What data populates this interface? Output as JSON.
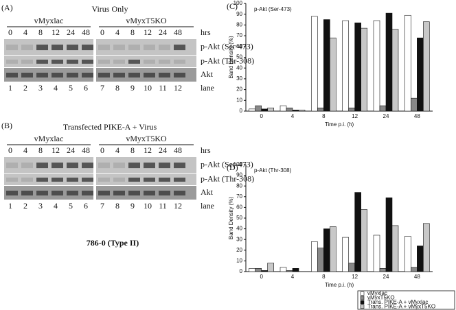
{
  "panels": [
    {
      "label": "(A)",
      "title": "Virus Only",
      "groups": [
        "vMyxlac",
        "vMyxT5KO"
      ],
      "times": [
        "0",
        "4",
        "8",
        "12",
        "24",
        "48"
      ],
      "time_unit": "hrs",
      "bands": [
        "p-Akt (Ser-473)",
        "p-Akt (Thr-308)",
        "Akt"
      ],
      "lanes": [
        1,
        2,
        3,
        4,
        5,
        6,
        7,
        8,
        9,
        10,
        11,
        12
      ],
      "lane_label": "lane"
    },
    {
      "label": "(B)",
      "title": "Transfected PIKE-A + Virus",
      "groups": [
        "vMyxlac",
        "vMyxT5KO"
      ],
      "times": [
        "0",
        "4",
        "8",
        "12",
        "24",
        "48"
      ],
      "time_unit": "hrs",
      "bands": [
        "p-Akt (Ser-473)",
        "p-Akt (Thr-308)",
        "Akt"
      ],
      "lanes": [
        1,
        2,
        3,
        4,
        5,
        6,
        7,
        8,
        9,
        10,
        11,
        12
      ],
      "lane_label": "lane"
    }
  ],
  "cell_line": "786-0 (Type II)",
  "chart_data": [
    {
      "type": "bar",
      "label": "(C)",
      "title": "p-Akt (Ser-473)",
      "ylabel": "Band Density (%)",
      "xlabel": "Time p.i. (h)",
      "categories": [
        "0",
        "4",
        "8",
        "12",
        "24",
        "48"
      ],
      "ylim": [
        0,
        100
      ],
      "yticks": [
        0,
        10,
        20,
        30,
        40,
        50,
        60,
        70,
        80,
        90,
        100
      ],
      "series": [
        {
          "color": "#ffffff",
          "values": [
            2,
            5,
            88,
            84,
            84,
            89
          ]
        },
        {
          "color": "#888888",
          "values": [
            5,
            3,
            3,
            3,
            5,
            12
          ]
        },
        {
          "color": "#111111",
          "values": [
            2,
            1,
            85,
            82,
            91,
            68
          ]
        },
        {
          "color": "#c8c8c8",
          "values": [
            3,
            1,
            68,
            77,
            76,
            83
          ]
        }
      ]
    },
    {
      "type": "bar",
      "label": "(D)",
      "title": "p-Akt (Thr-308)",
      "ylabel": "Band Density (%)",
      "xlabel": "Time p.i. (h)",
      "categories": [
        "0",
        "4",
        "8",
        "12",
        "24",
        "48"
      ],
      "ylim": [
        0,
        100
      ],
      "yticks": [
        0,
        10,
        20,
        30,
        40,
        50,
        60,
        70,
        80,
        90,
        100
      ],
      "legend": "bottom-right",
      "series": [
        {
          "name": "vMyxlac",
          "color": "#ffffff",
          "values": [
            3,
            4,
            28,
            32,
            34,
            33
          ]
        },
        {
          "name": "vMyxT5KO",
          "color": "#888888",
          "values": [
            3,
            1,
            22,
            8,
            3,
            4
          ]
        },
        {
          "name": "Trans. PIKE-A + vMyxlac",
          "color": "#111111",
          "values": [
            1,
            3,
            40,
            74,
            69,
            24
          ]
        },
        {
          "name": "Trans. PIKE-A + vMyxT5KO",
          "color": "#c8c8c8",
          "values": [
            8,
            0,
            42,
            58,
            43,
            45
          ]
        }
      ]
    }
  ]
}
